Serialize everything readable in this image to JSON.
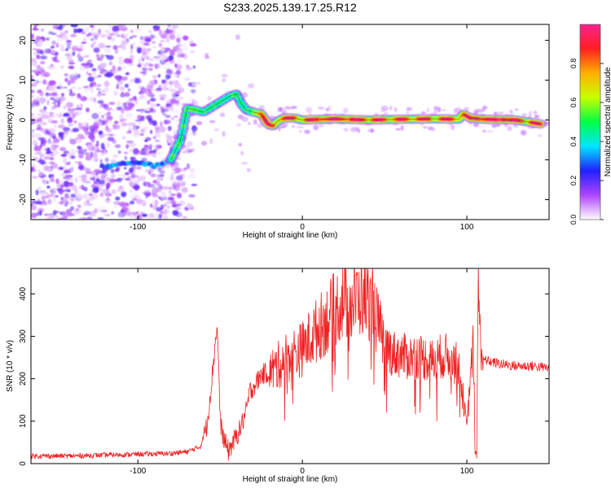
{
  "title": "S233.2025.139.17.25.R12",
  "colors": {
    "snr_line": "#ee2222",
    "axis": "#000000",
    "background": "#ffffff"
  },
  "chart_data": [
    {
      "type": "heatmap",
      "xlabel": "Height of straight line (km)",
      "ylabel": "Frequency (Hz)",
      "xlim": [
        -165,
        150
      ],
      "ylim": [
        -25,
        24
      ],
      "xticks": [
        -100,
        0,
        100
      ],
      "yticks": [
        -20,
        -10,
        0,
        10,
        20
      ],
      "colorbar": {
        "label": "Normalized spectral amplitude",
        "range": [
          0,
          1
        ],
        "ticks": [
          "0.0",
          "0.2",
          "0.4",
          "0.6",
          "0.8"
        ],
        "colormap": [
          "#ffffff",
          "#b044ff",
          "#2020ff",
          "#00e5ff",
          "#00ff44",
          "#c8ff00",
          "#ffb000",
          "#ff2020",
          "#ff2090"
        ]
      },
      "ridge": {
        "x": [
          -80,
          -74,
          -70,
          -65,
          -60,
          -56,
          -52,
          -48,
          -44,
          -40,
          -37,
          -34,
          -30,
          -25,
          -21,
          -18,
          -14,
          -10,
          -5,
          0,
          20,
          40,
          60,
          80,
          95,
          98,
          102,
          110,
          130,
          145
        ],
        "y": [
          -10,
          -5,
          3,
          2.5,
          2,
          3,
          4,
          5,
          6,
          6.5,
          4,
          2.5,
          2,
          1.5,
          -1,
          -1.5,
          0,
          0.5,
          0.5,
          0,
          0.3,
          0,
          0.2,
          0.3,
          0.2,
          1.5,
          0.5,
          0.2,
          0,
          -1
        ]
      },
      "lower_branch": {
        "x": [
          -120,
          -110,
          -100,
          -95,
          -90,
          -85,
          -80
        ],
        "y": [
          -12,
          -11,
          -10.5,
          -11,
          -11.5,
          -11,
          -10
        ]
      }
    },
    {
      "type": "line",
      "xlabel": "Height of straight line (km)",
      "ylabel": "SNR (10 * v/v)",
      "xlim": [
        -165,
        150
      ],
      "ylim": [
        0,
        460
      ],
      "xticks": [
        -100,
        0,
        100
      ],
      "yticks": [
        0,
        100,
        200,
        300,
        400
      ],
      "series": [
        {
          "x": [
            -165,
            -140,
            -120,
            -100,
            -80,
            -70,
            -62,
            -58,
            -55,
            -52,
            -51,
            -50,
            -48,
            -45,
            -42,
            -38,
            -34,
            -32,
            -28,
            -25,
            -20,
            -15,
            -10,
            -5,
            0,
            5,
            10,
            15,
            20,
            25,
            30,
            35,
            40,
            43,
            45,
            50,
            55,
            60,
            65,
            70,
            75,
            80,
            85,
            90,
            95,
            98,
            100,
            102,
            104,
            105,
            106,
            107,
            108,
            110,
            115,
            120,
            130,
            140,
            150
          ],
          "y": [
            18,
            18,
            20,
            22,
            24,
            28,
            40,
            90,
            200,
            325,
            250,
            100,
            60,
            30,
            50,
            80,
            125,
            170,
            190,
            210,
            215,
            230,
            250,
            260,
            270,
            295,
            320,
            340,
            365,
            385,
            375,
            395,
            385,
            380,
            340,
            280,
            260,
            255,
            250,
            255,
            248,
            240,
            255,
            250,
            230,
            150,
            80,
            200,
            280,
            40,
            20,
            440,
            300,
            245,
            240,
            235,
            230,
            230,
            225
          ]
        }
      ]
    }
  ]
}
